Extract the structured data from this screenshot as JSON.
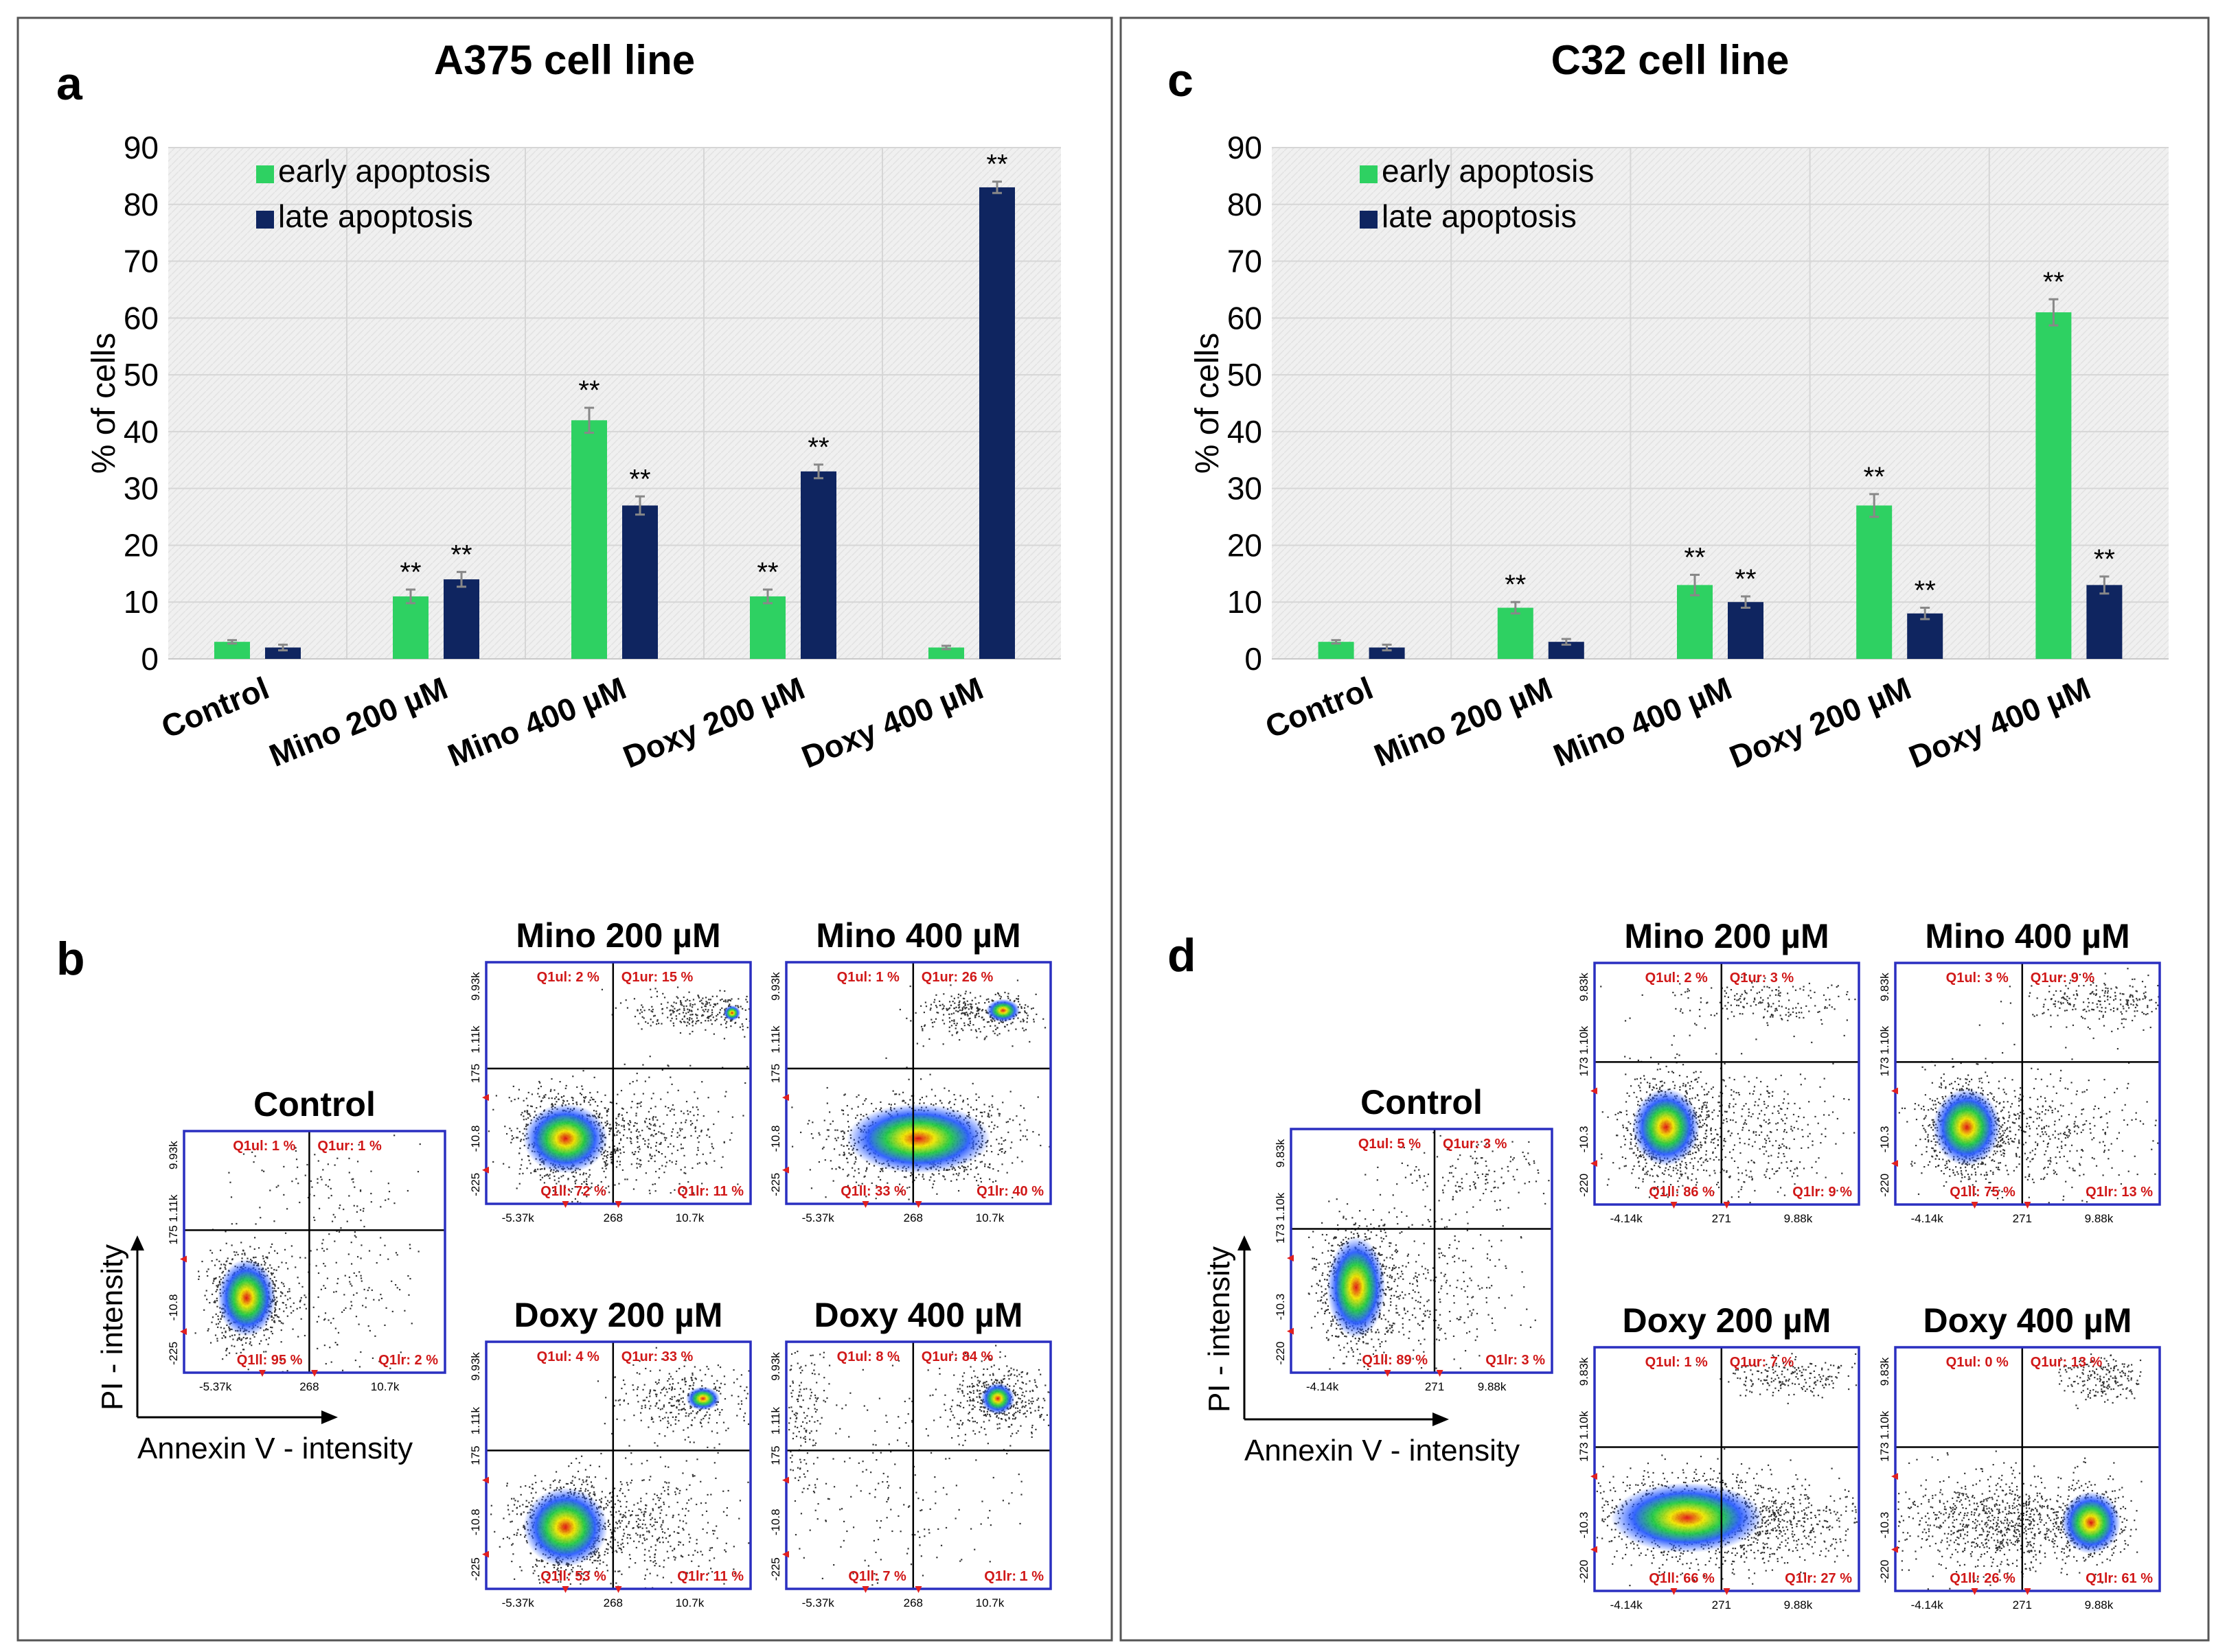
{
  "panels": {
    "left": {
      "chart_letter": "a",
      "plots_letter": "b",
      "title": "A375 cell line",
      "flow_axis_x": "Annexin V - intensity",
      "flow_axis_y": "PI - intensity",
      "flow_plots": {
        "control": {
          "title": "Control",
          "q_ul": "Q1ul: 1 %",
          "q_ur": "Q1ur: 1 %",
          "q_ll": "Q1ll: 95 %",
          "q_lr": "Q1lr: 2 %",
          "x_ticks": [
            "-5.37k",
            "268",
            "10.7k"
          ],
          "y_ticks": [
            "9.93k",
            "1.11k",
            "175",
            "-10.8",
            "-225"
          ]
        },
        "mino200": {
          "title": "Mino 200 µM",
          "q_ul": "Q1ul: 2 %",
          "q_ur": "Q1ur: 15 %",
          "q_ll": "Q1ll: 72 %",
          "q_lr": "Q1lr: 11 %",
          "x_ticks": [
            "-5.37k",
            "268",
            "10.7k"
          ],
          "y_ticks": [
            "9.93k",
            "1.11k",
            "175",
            "-10.8",
            "-225"
          ]
        },
        "mino400": {
          "title": "Mino 400 µM",
          "q_ul": "Q1ul: 1 %",
          "q_ur": "Q1ur: 26 %",
          "q_ll": "Q1ll: 33 %",
          "q_lr": "Q1lr: 40 %",
          "x_ticks": [
            "-5.37k",
            "268",
            "10.7k"
          ],
          "y_ticks": [
            "9.93k",
            "1.11k",
            "175",
            "-10.8",
            "-225"
          ]
        },
        "doxy200": {
          "title": "Doxy 200 µM",
          "q_ul": "Q1ul: 4 %",
          "q_ur": "Q1ur: 33 %",
          "q_ll": "Q1ll: 53 %",
          "q_lr": "Q1lr: 11 %",
          "x_ticks": [
            "-5.37k",
            "268",
            "10.7k"
          ],
          "y_ticks": [
            "9.93k",
            "1.11k",
            "175",
            "-10.8",
            "-225"
          ]
        },
        "doxy400": {
          "title": "Doxy 400 µM",
          "q_ul": "Q1ul: 8 %",
          "q_ur": "Q1ur: 84 %",
          "q_ll": "Q1ll: 7 %",
          "q_lr": "Q1lr: 1 %",
          "x_ticks": [
            "-5.37k",
            "268",
            "10.7k"
          ],
          "y_ticks": [
            "9.93k",
            "1.11k",
            "175",
            "-10.8",
            "-225"
          ]
        }
      }
    },
    "right": {
      "chart_letter": "c",
      "plots_letter": "d",
      "title": "C32 cell line",
      "flow_axis_x": "Annexin V - intensity",
      "flow_axis_y": "PI - intensity",
      "flow_plots": {
        "control": {
          "title": "Control",
          "q_ul": "Q1ul: 5 %",
          "q_ur": "Q1ur: 3 %",
          "q_ll": "Q1ll: 89 %",
          "q_lr": "Q1lr: 3 %",
          "x_ticks": [
            "-4.14k",
            "271",
            "9.88k"
          ],
          "y_ticks": [
            "9.83k",
            "1.10k",
            "173",
            "-10.3",
            "-220"
          ]
        },
        "mino200": {
          "title": "Mino 200 µM",
          "q_ul": "Q1ul: 2 %",
          "q_ur": "Q1ur: 3 %",
          "q_ll": "Q1ll: 86 %",
          "q_lr": "Q1lr: 9 %",
          "x_ticks": [
            "-4.14k",
            "271",
            "9.88k"
          ],
          "y_ticks": [
            "9.83k",
            "1.10k",
            "173",
            "-10.3",
            "-220"
          ]
        },
        "mino400": {
          "title": "Mino 400 µM",
          "q_ul": "Q1ul: 3 %",
          "q_ur": "Q1ur: 9 %",
          "q_ll": "Q1ll: 75 %",
          "q_lr": "Q1lr: 13 %",
          "x_ticks": [
            "-4.14k",
            "271",
            "9.88k"
          ],
          "y_ticks": [
            "9.83k",
            "1.10k",
            "173",
            "-10.3",
            "-220"
          ]
        },
        "doxy200": {
          "title": "Doxy 200 µM",
          "q_ul": "Q1ul: 1 %",
          "q_ur": "Q1ur: 7 %",
          "q_ll": "Q1ll: 66 %",
          "q_lr": "Q1lr: 27 %",
          "x_ticks": [
            "-4.14k",
            "271",
            "9.88k"
          ],
          "y_ticks": [
            "9.83k",
            "1.10k",
            "173",
            "-10.3",
            "-220"
          ]
        },
        "doxy400": {
          "title": "Doxy 400 µM",
          "q_ul": "Q1ul: 0 %",
          "q_ur": "Q1ur: 13 %",
          "q_ll": "Q1ll: 26 %",
          "q_lr": "Q1lr: 61 %",
          "x_ticks": [
            "-4.14k",
            "271",
            "9.88k"
          ],
          "y_ticks": [
            "9.83k",
            "1.10k",
            "173",
            "-10.3",
            "-220"
          ]
        }
      }
    }
  },
  "colors": {
    "early": "#2ed162",
    "late": "#0f2560",
    "plot_bg": "#efefef",
    "grid": "#d6d6d6",
    "flow_border": "#2a2fc0",
    "quadrant_label": "#d01818",
    "panel_border": "#555555"
  },
  "chart_data": [
    {
      "type": "bar",
      "title": "A375 cell line",
      "ylabel": "% of cells",
      "xlabel": "",
      "ylim": [
        0,
        90
      ],
      "yticks": [
        "0",
        "10",
        "20",
        "30",
        "40",
        "50",
        "60",
        "70",
        "80",
        "90"
      ],
      "categories": [
        "Control",
        "Mino 200 µM",
        "Mino 400 µM",
        "Doxy 200 µM",
        "Doxy 400 µM"
      ],
      "legend_position": "top-left",
      "series": [
        {
          "name": "early apoptosis",
          "values": [
            3,
            11,
            42,
            11,
            2
          ],
          "errors": [
            0.3,
            1.2,
            2.2,
            1.2,
            0.3
          ],
          "significance": [
            "",
            "**",
            "**",
            "**",
            ""
          ]
        },
        {
          "name": "late apoptosis",
          "values": [
            2,
            14,
            27,
            33,
            83
          ],
          "errors": [
            0.5,
            1.3,
            1.6,
            1.2,
            1.0
          ],
          "significance": [
            "",
            "**",
            "**",
            "**",
            "**"
          ]
        }
      ]
    },
    {
      "type": "bar",
      "title": "C32 cell line",
      "ylabel": "% of cells",
      "xlabel": "",
      "ylim": [
        0,
        90
      ],
      "yticks": [
        "0",
        "10",
        "20",
        "30",
        "40",
        "50",
        "60",
        "70",
        "80",
        "90"
      ],
      "categories": [
        "Control",
        "Mino 200 µM",
        "Mino 400 µM",
        "Doxy 200 µM",
        "Doxy 400 µM"
      ],
      "legend_position": "top-left",
      "series": [
        {
          "name": "early apoptosis",
          "values": [
            3,
            9,
            13,
            27,
            61
          ],
          "errors": [
            0.3,
            1.0,
            1.8,
            2.0,
            2.3
          ],
          "significance": [
            "",
            "**",
            "**",
            "**",
            "**"
          ]
        },
        {
          "name": "late apoptosis",
          "values": [
            2,
            3,
            10,
            8,
            13
          ],
          "errors": [
            0.5,
            0.5,
            1.0,
            1.0,
            1.5
          ],
          "significance": [
            "",
            "",
            "**",
            "**",
            "**"
          ]
        }
      ]
    }
  ]
}
